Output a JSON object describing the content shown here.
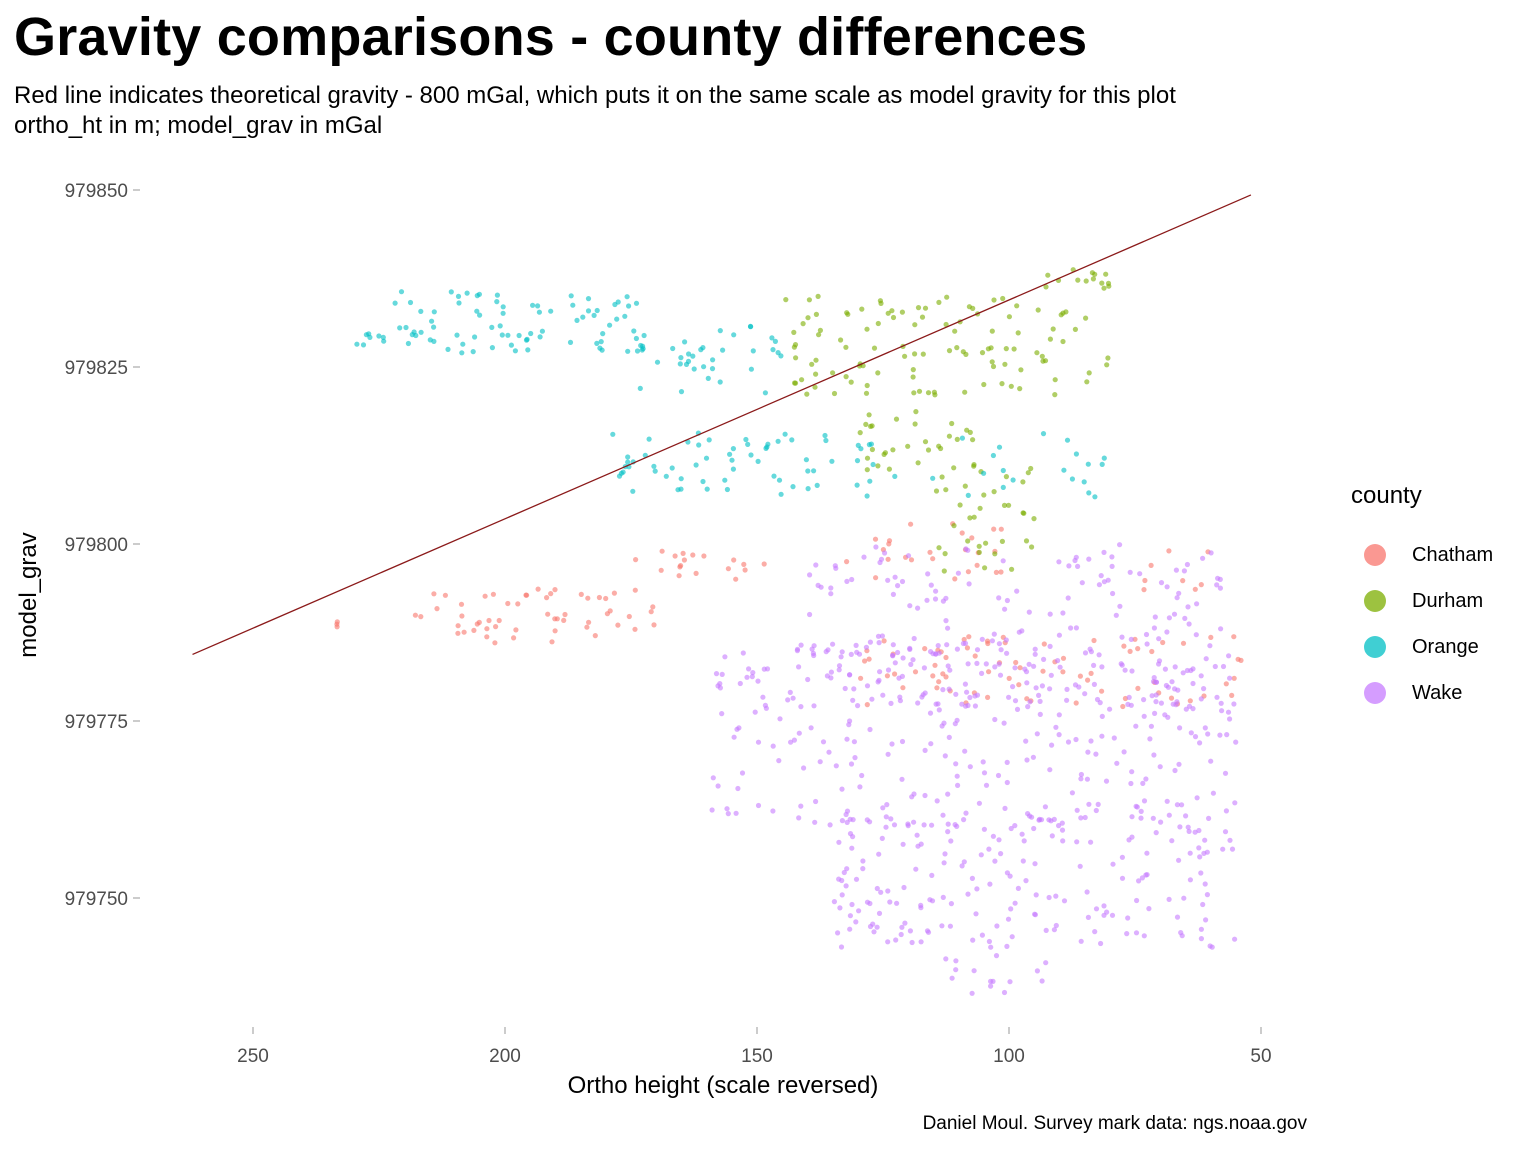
{
  "header": {
    "title": "Gravity comparisons - county differences",
    "subtitle_line1": "Red line indicates theoretical gravity - 800 mGal, which puts it on the same scale as model gravity for this plot",
    "subtitle_line2": "ortho_ht in m; model_grav in mGal"
  },
  "caption": "Daniel Moul. Survey mark data: ngs.noaa.gov",
  "legend": {
    "title": "county",
    "items": [
      {
        "label": "Chatham",
        "color": "#F8766D"
      },
      {
        "label": "Durham",
        "color": "#7CAE00"
      },
      {
        "label": "Orange",
        "color": "#00BFC4"
      },
      {
        "label": "Wake",
        "color": "#C77CFF"
      }
    ]
  },
  "chart_data": {
    "type": "scatter",
    "xlabel": "Ortho height (scale reversed)",
    "ylabel": "model_grav",
    "x_reversed": true,
    "xlim": [
      262,
      50
    ],
    "ylim": [
      979735,
      979850
    ],
    "x_ticks": [
      250,
      200,
      150,
      100,
      50
    ],
    "y_ticks": [
      979750,
      979775,
      979800,
      979825,
      979850
    ],
    "grid": false,
    "legend_position": "right",
    "point_alpha": 0.6,
    "reference_line": {
      "label": "theoretical gravity - 800 mGal",
      "color": "#8B1A1A",
      "points": [
        [
          262,
          979784.4
        ],
        [
          52,
          979849.3
        ]
      ]
    },
    "series": [
      {
        "name": "Chatham",
        "color": "#F8766D",
        "regions": [
          {
            "x": [
              232,
              234
            ],
            "y": [
              979788,
              979789
            ],
            "n": 3
          },
          {
            "x": [
              170,
              218
            ],
            "y": [
              979786,
              979794
            ],
            "n": 55
          },
          {
            "x": [
              145,
              175
            ],
            "y": [
              979795,
              979799
            ],
            "n": 18
          },
          {
            "x": [
              98,
              135
            ],
            "y": [
              979795,
              979803
            ],
            "n": 25
          },
          {
            "x": [
              52,
              130
            ],
            "y": [
              979777,
              979787
            ],
            "n": 75
          },
          {
            "x": [
              60,
              80
            ],
            "y": [
              979793,
              979800
            ],
            "n": 8
          }
        ]
      },
      {
        "name": "Durham",
        "color": "#7CAE00",
        "regions": [
          {
            "x": [
              80,
              95
            ],
            "y": [
              979836,
              979839
            ],
            "n": 14
          },
          {
            "x": [
              80,
              145
            ],
            "y": [
              979821,
              979835
            ],
            "n": 110
          },
          {
            "x": [
              105,
              130
            ],
            "y": [
              979810,
              979819
            ],
            "n": 30
          },
          {
            "x": [
              95,
              115
            ],
            "y": [
              979796,
              979812
            ],
            "n": 35
          }
        ]
      },
      {
        "name": "Orange",
        "color": "#00BFC4",
        "regions": [
          {
            "x": [
              224,
              230
            ],
            "y": [
              979828,
              979830
            ],
            "n": 8
          },
          {
            "x": [
              172,
              222
            ],
            "y": [
              979827,
              979836
            ],
            "n": 80
          },
          {
            "x": [
              145,
              175
            ],
            "y": [
              979821,
              979831
            ],
            "n": 35
          },
          {
            "x": [
              135,
              180
            ],
            "y": [
              979807,
              979816
            ],
            "n": 55
          },
          {
            "x": [
              80,
              132
            ],
            "y": [
              979806,
              979816
            ],
            "n": 30
          }
        ]
      },
      {
        "name": "Wake",
        "color": "#C77CFF",
        "regions": [
          {
            "x": [
              55,
              140
            ],
            "y": [
              979777,
              979800
            ],
            "n": 200
          },
          {
            "x": [
              55,
              160
            ],
            "y": [
              979760,
              979786
            ],
            "n": 280
          },
          {
            "x": [
              55,
              135
            ],
            "y": [
              979743,
              979762
            ],
            "n": 200
          },
          {
            "x": [
              92,
              115
            ],
            "y": [
              979736,
              979742
            ],
            "n": 15
          }
        ]
      }
    ]
  }
}
